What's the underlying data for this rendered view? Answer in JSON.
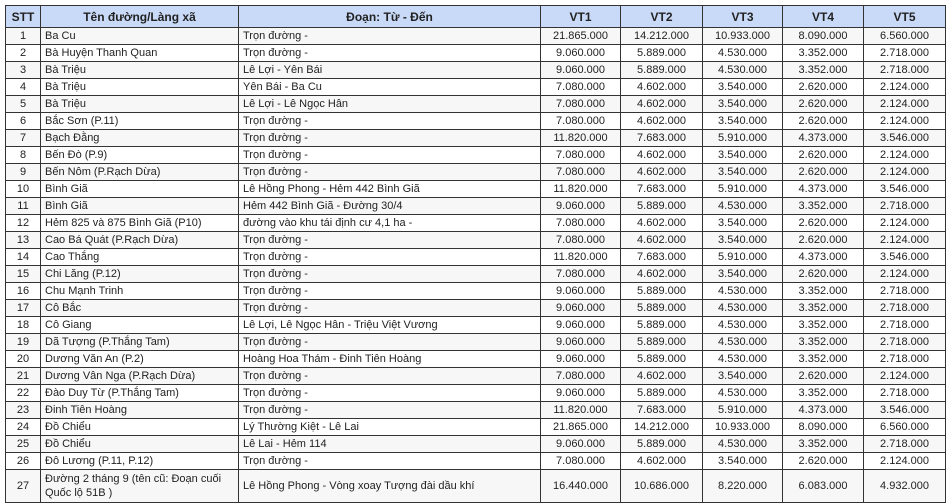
{
  "headers": {
    "stt": "STT",
    "name": "Tên đường/Làng xã",
    "segment": "Đoạn: Từ - Đến",
    "vt1": "VT1",
    "vt2": "VT2",
    "vt3": "VT3",
    "vt4": "VT4",
    "vt5": "VT5"
  },
  "rows": [
    {
      "stt": "1",
      "name": "Ba Cu",
      "segment": "Trọn đường -",
      "vt1": "21.865.000",
      "vt2": "14.212.000",
      "vt3": "10.933.000",
      "vt4": "8.090.000",
      "vt5": "6.560.000"
    },
    {
      "stt": "2",
      "name": "Bà Huyện Thanh Quan",
      "segment": "Trọn đường -",
      "vt1": "9.060.000",
      "vt2": "5.889.000",
      "vt3": "4.530.000",
      "vt4": "3.352.000",
      "vt5": "2.718.000"
    },
    {
      "stt": "3",
      "name": "Bà Triệu",
      "segment": "Lê Lợi - Yên Bái",
      "vt1": "9.060.000",
      "vt2": "5.889.000",
      "vt3": "4.530.000",
      "vt4": "3.352.000",
      "vt5": "2.718.000"
    },
    {
      "stt": "4",
      "name": "Bà Triệu",
      "segment": "Yên Bái - Ba Cu",
      "vt1": "7.080.000",
      "vt2": "4.602.000",
      "vt3": "3.540.000",
      "vt4": "2.620.000",
      "vt5": "2.124.000"
    },
    {
      "stt": "5",
      "name": "Bà Triệu",
      "segment": "Lê Lợi - Lê Ngọc Hân",
      "vt1": "7.080.000",
      "vt2": "4.602.000",
      "vt3": "3.540.000",
      "vt4": "2.620.000",
      "vt5": "2.124.000"
    },
    {
      "stt": "6",
      "name": "Bắc Sơn (P.11)",
      "segment": "Trọn đường -",
      "vt1": "7.080.000",
      "vt2": "4.602.000",
      "vt3": "3.540.000",
      "vt4": "2.620.000",
      "vt5": "2.124.000"
    },
    {
      "stt": "7",
      "name": "Bạch Đằng",
      "segment": "Trọn đường -",
      "vt1": "11.820.000",
      "vt2": "7.683.000",
      "vt3": "5.910.000",
      "vt4": "4.373.000",
      "vt5": "3.546.000"
    },
    {
      "stt": "8",
      "name": "Bến Đò (P.9)",
      "segment": "Trọn đường -",
      "vt1": "7.080.000",
      "vt2": "4.602.000",
      "vt3": "3.540.000",
      "vt4": "2.620.000",
      "vt5": "2.124.000"
    },
    {
      "stt": "9",
      "name": "Bến Nôm (P.Rạch Dừa)",
      "segment": "Trọn đường -",
      "vt1": "7.080.000",
      "vt2": "4.602.000",
      "vt3": "3.540.000",
      "vt4": "2.620.000",
      "vt5": "2.124.000"
    },
    {
      "stt": "10",
      "name": "Bình Giã",
      "segment": "Lê Hồng Phong - Hẻm 442 Bình Giã",
      "vt1": "11.820.000",
      "vt2": "7.683.000",
      "vt3": "5.910.000",
      "vt4": "4.373.000",
      "vt5": "3.546.000"
    },
    {
      "stt": "11",
      "name": "Bình Giã",
      "segment": "Hẻm 442 Bình Giã - Đường 30/4",
      "vt1": "9.060.000",
      "vt2": "5.889.000",
      "vt3": "4.530.000",
      "vt4": "3.352.000",
      "vt5": "2.718.000"
    },
    {
      "stt": "12",
      "name": "Hẻm 825 và 875 Bình Giã (P10)",
      "segment": "đường vào khu tái định cư 4,1 ha -",
      "vt1": "7.080.000",
      "vt2": "4.602.000",
      "vt3": "3.540.000",
      "vt4": "2.620.000",
      "vt5": "2.124.000"
    },
    {
      "stt": "13",
      "name": "Cao Bá Quát (P.Rạch Dừa)",
      "segment": "Trọn đường -",
      "vt1": "7.080.000",
      "vt2": "4.602.000",
      "vt3": "3.540.000",
      "vt4": "2.620.000",
      "vt5": "2.124.000"
    },
    {
      "stt": "14",
      "name": "Cao Thắng",
      "segment": "Trọn đường -",
      "vt1": "11.820.000",
      "vt2": "7.683.000",
      "vt3": "5.910.000",
      "vt4": "4.373.000",
      "vt5": "3.546.000"
    },
    {
      "stt": "15",
      "name": "Chi Lăng (P.12)",
      "segment": "Trọn đường -",
      "vt1": "7.080.000",
      "vt2": "4.602.000",
      "vt3": "3.540.000",
      "vt4": "2.620.000",
      "vt5": "2.124.000"
    },
    {
      "stt": "16",
      "name": "Chu Mạnh Trinh",
      "segment": "Trọn đường -",
      "vt1": "9.060.000",
      "vt2": "5.889.000",
      "vt3": "4.530.000",
      "vt4": "3.352.000",
      "vt5": "2.718.000"
    },
    {
      "stt": "17",
      "name": "Cô Bắc",
      "segment": "Trọn đường -",
      "vt1": "9.060.000",
      "vt2": "5.889.000",
      "vt3": "4.530.000",
      "vt4": "3.352.000",
      "vt5": "2.718.000"
    },
    {
      "stt": "18",
      "name": "Cô Giang",
      "segment": "Lê Lợi, Lê Ngọc Hân - Triệu Việt Vương",
      "vt1": "9.060.000",
      "vt2": "5.889.000",
      "vt3": "4.530.000",
      "vt4": "3.352.000",
      "vt5": "2.718.000"
    },
    {
      "stt": "19",
      "name": "Dã Tượng (P.Thắng Tam)",
      "segment": "Trọn đường -",
      "vt1": "9.060.000",
      "vt2": "5.889.000",
      "vt3": "4.530.000",
      "vt4": "3.352.000",
      "vt5": "2.718.000"
    },
    {
      "stt": "20",
      "name": "Dương Văn An (P.2)",
      "segment": "Hoàng Hoa Thám - Đinh Tiên Hoàng",
      "vt1": "9.060.000",
      "vt2": "5.889.000",
      "vt3": "4.530.000",
      "vt4": "3.352.000",
      "vt5": "2.718.000"
    },
    {
      "stt": "21",
      "name": "Dương Vân Nga (P.Rạch Dừa)",
      "segment": "Trọn đường -",
      "vt1": "7.080.000",
      "vt2": "4.602.000",
      "vt3": "3.540.000",
      "vt4": "2.620.000",
      "vt5": "2.124.000"
    },
    {
      "stt": "22",
      "name": "Đào Duy Từ (P.Thắng Tam)",
      "segment": "Trọn đường -",
      "vt1": "9.060.000",
      "vt2": "5.889.000",
      "vt3": "4.530.000",
      "vt4": "3.352.000",
      "vt5": "2.718.000"
    },
    {
      "stt": "23",
      "name": "Đinh Tiên Hoàng",
      "segment": "Trọn đường -",
      "vt1": "11.820.000",
      "vt2": "7.683.000",
      "vt3": "5.910.000",
      "vt4": "4.373.000",
      "vt5": "3.546.000"
    },
    {
      "stt": "24",
      "name": "Đồ Chiểu",
      "segment": "Lý Thường Kiệt - Lê Lai",
      "vt1": "21.865.000",
      "vt2": "14.212.000",
      "vt3": "10.933.000",
      "vt4": "8.090.000",
      "vt5": "6.560.000"
    },
    {
      "stt": "25",
      "name": "Đồ Chiểu",
      "segment": "Lê Lai - Hẻm 114",
      "vt1": "9.060.000",
      "vt2": "5.889.000",
      "vt3": "4.530.000",
      "vt4": "3.352.000",
      "vt5": "2.718.000"
    },
    {
      "stt": "26",
      "name": "Đô Lương (P.11, P.12)",
      "segment": "Trọn đường -",
      "vt1": "7.080.000",
      "vt2": "4.602.000",
      "vt3": "3.540.000",
      "vt4": "2.620.000",
      "vt5": "2.124.000"
    },
    {
      "stt": "27",
      "name": "Đường 2 tháng 9 (tên cũ: Đoạn cuối Quốc lộ 51B )",
      "segment": "Lê Hồng Phong - Vòng xoay Tượng đài dầu khí",
      "vt1": "16.440.000",
      "vt2": "10.686.000",
      "vt3": "8.220.000",
      "vt4": "6.083.000",
      "vt5": "4.932.000"
    }
  ]
}
